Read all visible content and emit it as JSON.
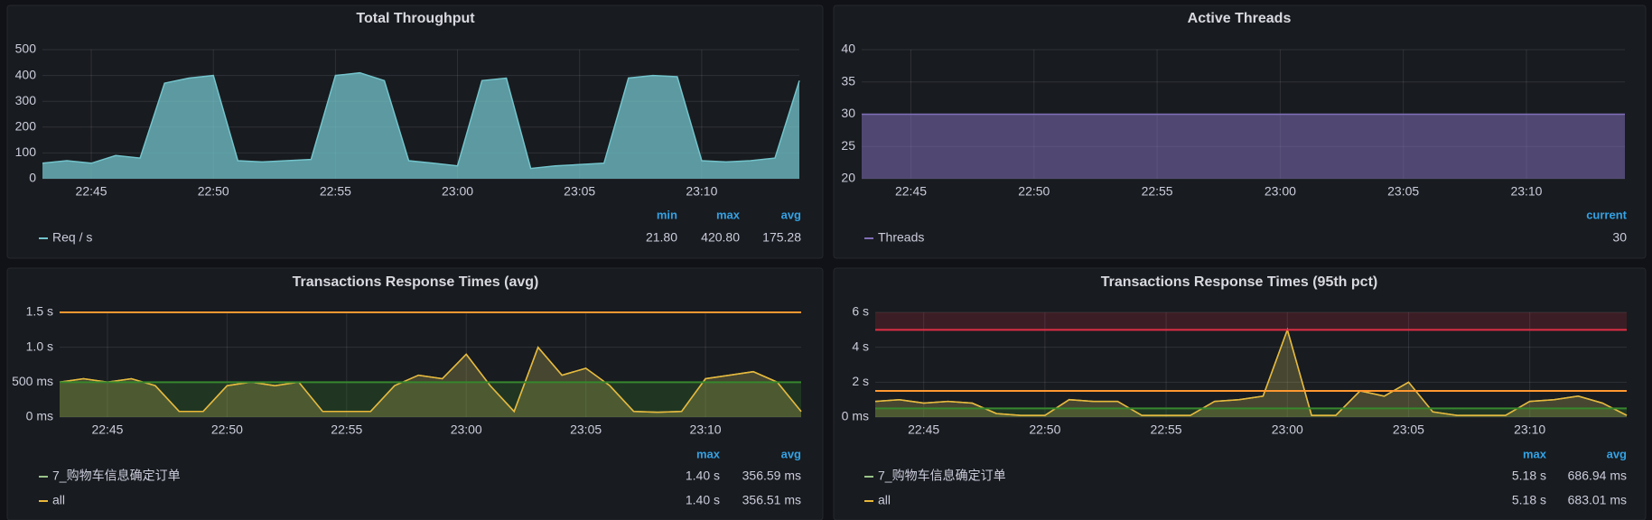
{
  "chart_data": [
    {
      "type": "area",
      "title": "Total Throughput",
      "x": [
        "22:43",
        "22:44",
        "22:45",
        "22:46",
        "22:47",
        "22:48",
        "22:49",
        "22:50",
        "22:51",
        "22:52",
        "22:53",
        "22:54",
        "22:55",
        "22:56",
        "22:57",
        "22:58",
        "22:59",
        "23:00",
        "23:01",
        "23:02",
        "23:03",
        "23:04",
        "23:05",
        "23:06",
        "23:07",
        "23:08",
        "23:09",
        "23:10",
        "23:11",
        "23:12",
        "23:13",
        "23:14"
      ],
      "series": [
        {
          "name": "Req / s",
          "color": "#73c4cc",
          "values": [
            60,
            70,
            60,
            90,
            80,
            370,
            390,
            400,
            70,
            65,
            70,
            75,
            400,
            410,
            380,
            70,
            60,
            50,
            380,
            390,
            40,
            50,
            55,
            60,
            390,
            400,
            395,
            70,
            65,
            70,
            80,
            380
          ]
        }
      ],
      "xlim": [
        "22:43",
        "23:14"
      ],
      "xticks": [
        "22:45",
        "22:50",
        "22:55",
        "23:00",
        "23:05",
        "23:10"
      ],
      "ylim": [
        0,
        500
      ],
      "yticks": [
        0,
        100,
        200,
        300,
        400,
        500
      ],
      "grid": true,
      "legend": {
        "columns": [
          "min",
          "max",
          "avg"
        ],
        "rows": [
          [
            "21.80",
            "420.80",
            "175.28"
          ]
        ]
      }
    },
    {
      "type": "area",
      "title": "Active Threads",
      "x": [
        "22:43",
        "23:14"
      ],
      "series": [
        {
          "name": "Threads",
          "color": "#806eb7",
          "values": [
            30,
            30
          ]
        }
      ],
      "xlim": [
        "22:43",
        "23:14"
      ],
      "xticks": [
        "22:45",
        "22:50",
        "22:55",
        "23:00",
        "23:05",
        "23:10"
      ],
      "ylim": [
        20,
        40
      ],
      "yticks": [
        20,
        25,
        30,
        35,
        40
      ],
      "grid": true,
      "legend": {
        "columns": [
          "current"
        ],
        "rows": [
          [
            "30"
          ]
        ]
      }
    },
    {
      "type": "area",
      "title": "Transactions Response Times (avg)",
      "x": [
        "22:43",
        "22:44",
        "22:45",
        "22:46",
        "22:47",
        "22:48",
        "22:49",
        "22:50",
        "22:51",
        "22:52",
        "22:53",
        "22:54",
        "22:55",
        "22:56",
        "22:57",
        "22:58",
        "22:59",
        "23:00",
        "23:01",
        "23:02",
        "23:03",
        "23:04",
        "23:05",
        "23:06",
        "23:07",
        "23:08",
        "23:09",
        "23:10",
        "23:11",
        "23:12",
        "23:13",
        "23:14"
      ],
      "series": [
        {
          "name": "7_购物车信息确定订单",
          "color": "#9ac48a",
          "values": [
            0.5,
            0.55,
            0.5,
            0.55,
            0.45,
            0.08,
            0.08,
            0.45,
            0.5,
            0.45,
            0.5,
            0.08,
            0.08,
            0.08,
            0.45,
            0.6,
            0.55,
            0.9,
            0.45,
            0.08,
            1.0,
            0.6,
            0.7,
            0.45,
            0.08,
            0.07,
            0.08,
            0.55,
            0.6,
            0.65,
            0.5,
            0.08
          ]
        },
        {
          "name": "all",
          "color": "#eab839",
          "values": [
            0.5,
            0.55,
            0.5,
            0.55,
            0.45,
            0.08,
            0.08,
            0.45,
            0.5,
            0.45,
            0.5,
            0.08,
            0.08,
            0.08,
            0.45,
            0.6,
            0.55,
            0.9,
            0.45,
            0.08,
            1.0,
            0.6,
            0.7,
            0.45,
            0.08,
            0.07,
            0.08,
            0.55,
            0.6,
            0.65,
            0.5,
            0.08
          ]
        }
      ],
      "xlim": [
        "22:43",
        "23:14"
      ],
      "xticks": [
        "22:45",
        "22:50",
        "22:55",
        "23:00",
        "23:05",
        "23:10"
      ],
      "ylim": [
        0,
        1.5
      ],
      "yticks": [
        {
          "value": 0,
          "label": "0 ms"
        },
        {
          "value": 0.5,
          "label": "500 ms"
        },
        {
          "value": 1.0,
          "label": "1.0 s"
        },
        {
          "value": 1.5,
          "label": "1.5 s"
        }
      ],
      "grid": true,
      "thresholds": [
        {
          "value": 0.5,
          "color": "#37872d",
          "fill": "below"
        },
        {
          "value": 1.5,
          "color": "#ff9830"
        }
      ],
      "legend": {
        "columns": [
          "max",
          "avg"
        ],
        "rows": [
          [
            "1.40 s",
            "356.59 ms"
          ],
          [
            "1.40 s",
            "356.51 ms"
          ]
        ]
      }
    },
    {
      "type": "area",
      "title": "Transactions Response Times (95th pct)",
      "x": [
        "22:43",
        "22:44",
        "22:45",
        "22:46",
        "22:47",
        "22:48",
        "22:49",
        "22:50",
        "22:51",
        "22:52",
        "22:53",
        "22:54",
        "22:55",
        "22:56",
        "22:57",
        "22:58",
        "22:59",
        "23:00",
        "23:01",
        "23:02",
        "23:03",
        "23:04",
        "23:05",
        "23:06",
        "23:07",
        "23:08",
        "23:09",
        "23:10",
        "23:11",
        "23:12",
        "23:13",
        "23:14"
      ],
      "series": [
        {
          "name": "7_购物车信息确定订单",
          "color": "#9ac48a",
          "values": [
            0.9,
            1.0,
            0.8,
            0.9,
            0.8,
            0.2,
            0.1,
            0.1,
            1.0,
            0.9,
            0.9,
            0.1,
            0.1,
            0.1,
            0.9,
            1.0,
            1.2,
            5.0,
            0.1,
            0.1,
            1.5,
            1.2,
            2.0,
            0.3,
            0.1,
            0.1,
            0.1,
            0.9,
            1.0,
            1.2,
            0.8,
            0.1
          ]
        },
        {
          "name": "all",
          "color": "#eab839",
          "values": [
            0.9,
            1.0,
            0.8,
            0.9,
            0.8,
            0.2,
            0.1,
            0.1,
            1.0,
            0.9,
            0.9,
            0.1,
            0.1,
            0.1,
            0.9,
            1.0,
            1.2,
            5.0,
            0.1,
            0.1,
            1.5,
            1.2,
            2.0,
            0.3,
            0.1,
            0.1,
            0.1,
            0.9,
            1.0,
            1.2,
            0.8,
            0.1
          ]
        }
      ],
      "xlim": [
        "22:43",
        "23:14"
      ],
      "xticks": [
        "22:45",
        "22:50",
        "22:55",
        "23:00",
        "23:05",
        "23:10"
      ],
      "ylim": [
        0,
        6
      ],
      "yticks": [
        {
          "value": 0,
          "label": "0 ms"
        },
        {
          "value": 2,
          "label": "2 s"
        },
        {
          "value": 4,
          "label": "4 s"
        },
        {
          "value": 6,
          "label": "6 s"
        }
      ],
      "grid": true,
      "thresholds": [
        {
          "value": 0.5,
          "color": "#37872d",
          "fill": "below"
        },
        {
          "value": 1.5,
          "color": "#ff9830"
        },
        {
          "value": 5,
          "color": "#e02f44",
          "fill": "above"
        }
      ],
      "legend": {
        "columns": [
          "max",
          "avg"
        ],
        "rows": [
          [
            "5.18 s",
            "686.94 ms"
          ],
          [
            "5.18 s",
            "683.01 ms"
          ]
        ]
      }
    }
  ]
}
